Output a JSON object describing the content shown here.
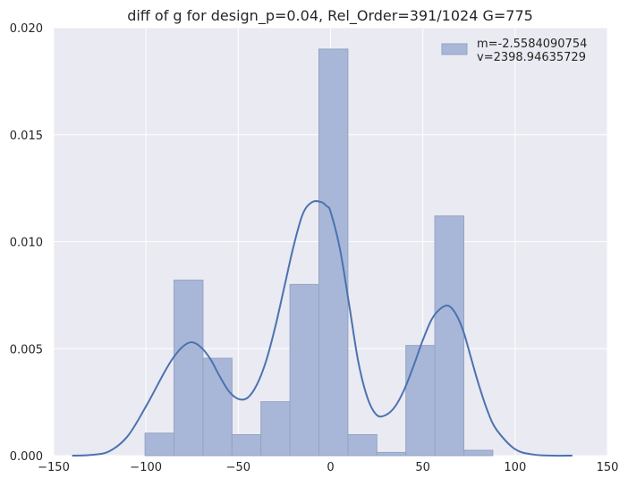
{
  "chart_data": {
    "type": "bar",
    "title": "diff of g for design_p=0.04, Rel_Order=391/1024 G=775",
    "xlabel": "",
    "ylabel": "",
    "xlim": [
      -150,
      150
    ],
    "ylim": [
      0,
      0.02
    ],
    "x_ticks": [
      -150,
      -100,
      -50,
      0,
      50,
      100,
      150
    ],
    "x_tick_labels": [
      "−150",
      "−100",
      "−50",
      "0",
      "50",
      "100",
      "150"
    ],
    "y_ticks": [
      0,
      0.005,
      0.01,
      0.015,
      0.02
    ],
    "y_tick_labels": [
      "0.000",
      "0.005",
      "0.010",
      "0.015",
      "0.020"
    ],
    "grid": true,
    "legend_position": "top-right",
    "histogram": {
      "bin_edges": [
        -100.5,
        -84.8,
        -69.1,
        -53.4,
        -37.7,
        -22.0,
        -6.3,
        9.4,
        25.1,
        40.8,
        56.5,
        72.2,
        87.9
      ],
      "values": [
        0.00105,
        0.0082,
        0.00455,
        0.00098,
        0.00252,
        0.008,
        0.019,
        0.00098,
        0.00015,
        0.00515,
        0.0112,
        0.00025
      ],
      "legend_label": "m=-2.5584090754\n v=2398.94635729",
      "fill_color": "#a8b7d8",
      "edge_color": "#95a3c2"
    },
    "kde": {
      "x": [
        -140,
        -130,
        -120,
        -110,
        -100,
        -90,
        -85,
        -80,
        -75,
        -70,
        -65,
        -60,
        -55,
        -50,
        -45,
        -40,
        -35,
        -30,
        -25,
        -20,
        -15,
        -10,
        -5,
        -2,
        0,
        5,
        10,
        15,
        20,
        25,
        30,
        35,
        40,
        45,
        50,
        55,
        60,
        64,
        68,
        72,
        76,
        80,
        85,
        90,
        100,
        110,
        120,
        131
      ],
      "y": [
        0.0,
        3e-05,
        0.0002,
        0.0009,
        0.0023,
        0.0039,
        0.0046,
        0.0051,
        0.0053,
        0.00505,
        0.0045,
        0.0037,
        0.003,
        0.00265,
        0.0027,
        0.0033,
        0.0044,
        0.006,
        0.0079,
        0.0098,
        0.0113,
        0.01185,
        0.01185,
        0.01165,
        0.0114,
        0.0097,
        0.0071,
        0.0044,
        0.0027,
        0.0019,
        0.0019,
        0.0023,
        0.0031,
        0.0042,
        0.0054,
        0.0064,
        0.0069,
        0.007,
        0.0066,
        0.0058,
        0.0046,
        0.0034,
        0.0021,
        0.0012,
        0.0003,
        5e-05,
        0.0,
        0.0
      ],
      "color": "#4c72b0"
    },
    "colors": {
      "plot_background": "#eaeaf2",
      "grid": "#ffffff",
      "text": "#262626"
    }
  }
}
